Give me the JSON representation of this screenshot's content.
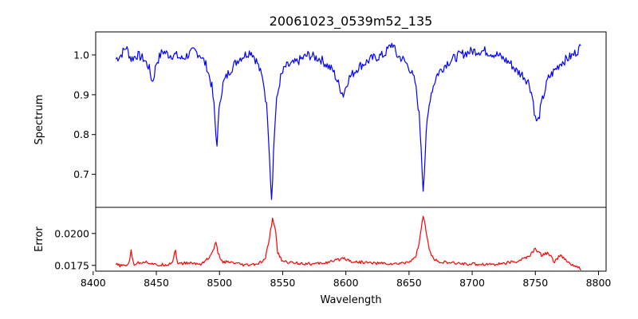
{
  "chart_data": [
    {
      "type": "line",
      "panel": "spectrum",
      "title": "20061023_0539m52_135",
      "xlabel": "",
      "ylabel": "Spectrum",
      "xlim": [
        8402,
        8806
      ],
      "ylim": [
        0.617,
        1.058
      ],
      "yticks": [
        0.7,
        0.8,
        0.9,
        1.0
      ],
      "ytick_labels": [
        "0.7",
        "0.8",
        "0.9",
        "1.0"
      ],
      "grid": false,
      "color": "#0000ff",
      "series": [
        {
          "x": [
            8418,
            8422,
            8426,
            8430,
            8435,
            8440,
            8444,
            8447,
            8450,
            8455,
            8460,
            8465,
            8470,
            8475,
            8480,
            8485,
            8490,
            8494,
            8496,
            8497,
            8498,
            8499,
            8500,
            8503,
            8508,
            8515,
            8520,
            8525,
            8530,
            8535,
            8538,
            8540,
            8541,
            8542,
            8543,
            8545,
            8548,
            8552,
            8560,
            8570,
            8580,
            8590,
            8595,
            8598,
            8602,
            8610,
            8620,
            8630,
            8637,
            8640,
            8645,
            8650,
            8655,
            8658,
            8660,
            8661,
            8662,
            8664,
            8667,
            8672,
            8680,
            8690,
            8700,
            8710,
            8720,
            8725,
            8730,
            8735,
            8740,
            8745,
            8748,
            8750,
            8752,
            8755,
            8760,
            8770,
            8780,
            8786
          ],
          "y": [
            0.99,
            1.0,
            1.02,
            0.99,
            1.0,
            0.99,
            0.97,
            0.93,
            0.98,
            1.01,
            1.0,
            1.0,
            0.99,
            1.0,
            1.01,
            1.0,
            0.97,
            0.92,
            0.86,
            0.8,
            0.78,
            0.82,
            0.88,
            0.93,
            0.96,
            0.99,
            1.0,
            1.01,
            0.98,
            0.93,
            0.85,
            0.72,
            0.64,
            0.68,
            0.78,
            0.88,
            0.94,
            0.97,
            0.98,
            1.0,
            0.99,
            0.96,
            0.92,
            0.9,
            0.94,
            0.97,
            0.99,
            1.0,
            1.03,
            1.0,
            0.99,
            0.97,
            0.93,
            0.85,
            0.75,
            0.66,
            0.7,
            0.82,
            0.9,
            0.95,
            0.98,
            1.0,
            1.01,
            1.01,
            1.0,
            0.99,
            0.98,
            0.96,
            0.95,
            0.93,
            0.89,
            0.84,
            0.83,
            0.88,
            0.94,
            0.98,
            1.0,
            1.02
          ]
        }
      ]
    },
    {
      "type": "line",
      "panel": "error",
      "title": "",
      "xlabel": "Wavelength",
      "ylabel": "Error",
      "xlim": [
        8402,
        8806
      ],
      "ylim": [
        0.01705,
        0.02205
      ],
      "xticks": [
        8400,
        8450,
        8500,
        8550,
        8600,
        8650,
        8700,
        8750,
        8800
      ],
      "xtick_labels": [
        "8400",
        "8450",
        "8500",
        "8550",
        "8600",
        "8650",
        "8700",
        "8750",
        "8800"
      ],
      "yticks": [
        0.0175,
        0.02
      ],
      "ytick_labels": [
        "0.0175",
        "0.0200"
      ],
      "grid": false,
      "color": "#ff0000",
      "series": [
        {
          "x": [
            8418,
            8424,
            8428,
            8430,
            8432,
            8440,
            8445,
            8450,
            8460,
            8463,
            8465,
            8467,
            8475,
            8485,
            8493,
            8497,
            8499,
            8502,
            8510,
            8520,
            8530,
            8536,
            8540,
            8542,
            8544,
            8546,
            8550,
            8560,
            8575,
            8590,
            8598,
            8605,
            8620,
            8640,
            8650,
            8655,
            8658,
            8661,
            8663,
            8666,
            8670,
            8680,
            8700,
            8720,
            8735,
            8745,
            8750,
            8755,
            8760,
            8765,
            8770,
            8775,
            8780,
            8786
          ],
          "y": [
            0.01755,
            0.01745,
            0.0176,
            0.0186,
            0.0176,
            0.0178,
            0.0177,
            0.0175,
            0.0176,
            0.0178,
            0.0188,
            0.0176,
            0.0177,
            0.0176,
            0.0182,
            0.0193,
            0.0184,
            0.0178,
            0.0177,
            0.0175,
            0.0176,
            0.0179,
            0.0199,
            0.0212,
            0.0205,
            0.0185,
            0.0178,
            0.0177,
            0.0176,
            0.0178,
            0.0181,
            0.0178,
            0.0177,
            0.0176,
            0.0178,
            0.0181,
            0.0192,
            0.0214,
            0.0205,
            0.0187,
            0.0179,
            0.0177,
            0.0176,
            0.0176,
            0.0178,
            0.0182,
            0.0188,
            0.0183,
            0.0185,
            0.0178,
            0.0183,
            0.0178,
            0.0175,
            0.0172
          ]
        }
      ]
    }
  ]
}
